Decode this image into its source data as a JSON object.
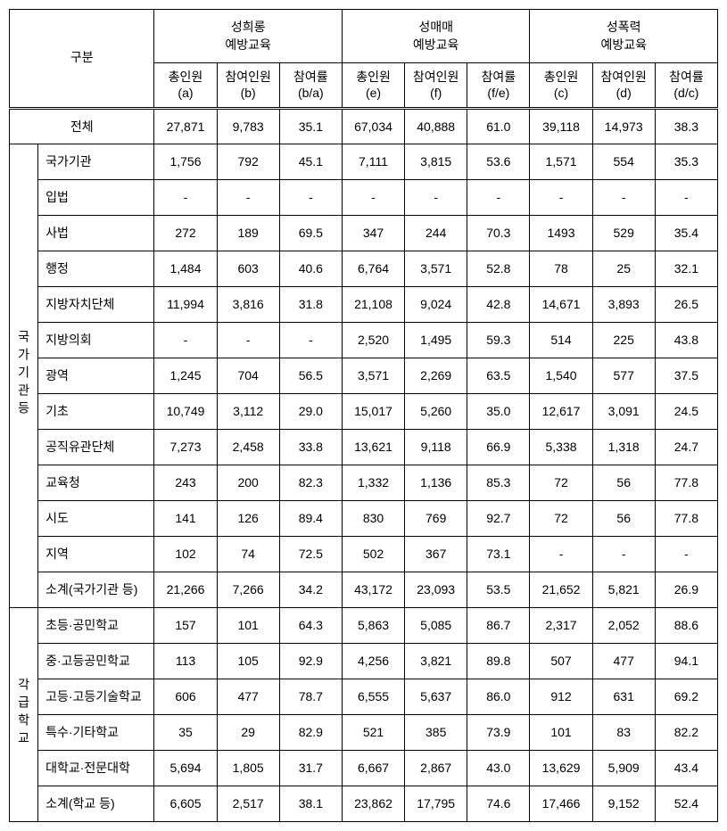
{
  "header": {
    "category": "구분",
    "groups": [
      {
        "title": "성희롱\n예방교육",
        "cols": [
          {
            "label": "총인원",
            "sub": "(a)"
          },
          {
            "label": "참여인원",
            "sub": "(b)"
          },
          {
            "label": "참여률",
            "sub": "(b/a)"
          }
        ]
      },
      {
        "title": "성매매\n예방교육",
        "cols": [
          {
            "label": "총인원",
            "sub": "(e)"
          },
          {
            "label": "참여인원",
            "sub": "(f)"
          },
          {
            "label": "참여률",
            "sub": "(f/e)"
          }
        ]
      },
      {
        "title": "성폭력\n예방교육",
        "cols": [
          {
            "label": "총인원",
            "sub": "(c)"
          },
          {
            "label": "참여인원",
            "sub": "(d)"
          },
          {
            "label": "참여률",
            "sub": "(d/c)"
          }
        ]
      }
    ]
  },
  "totalRow": {
    "label": "전체",
    "values": [
      "27,871",
      "9,783",
      "35.1",
      "67,034",
      "40,888",
      "61.0",
      "39,118",
      "14,973",
      "38.3"
    ]
  },
  "section1": {
    "label": "국가기관등",
    "rows": [
      {
        "label": "국가기관",
        "values": [
          "1,756",
          "792",
          "45.1",
          "7,111",
          "3,815",
          "53.6",
          "1,571",
          "554",
          "35.3"
        ]
      },
      {
        "label": "입법",
        "values": [
          "-",
          "-",
          "-",
          "-",
          "-",
          "-",
          "-",
          "-",
          "-"
        ]
      },
      {
        "label": "사법",
        "values": [
          "272",
          "189",
          "69.5",
          "347",
          "244",
          "70.3",
          "1493",
          "529",
          "35.4"
        ]
      },
      {
        "label": "행정",
        "values": [
          "1,484",
          "603",
          "40.6",
          "6,764",
          "3,571",
          "52.8",
          "78",
          "25",
          "32.1"
        ]
      },
      {
        "label": "지방자치단체",
        "values": [
          "11,994",
          "3,816",
          "31.8",
          "21,108",
          "9,024",
          "42.8",
          "14,671",
          "3,893",
          "26.5"
        ]
      },
      {
        "label": "지방의회",
        "values": [
          "-",
          "-",
          "-",
          "2,520",
          "1,495",
          "59.3",
          "514",
          "225",
          "43.8"
        ]
      },
      {
        "label": "광역",
        "values": [
          "1,245",
          "704",
          "56.5",
          "3,571",
          "2,269",
          "63.5",
          "1,540",
          "577",
          "37.5"
        ]
      },
      {
        "label": "기초",
        "values": [
          "10,749",
          "3,112",
          "29.0",
          "15,017",
          "5,260",
          "35.0",
          "12,617",
          "3,091",
          "24.5"
        ]
      },
      {
        "label": "공직유관단체",
        "values": [
          "7,273",
          "2,458",
          "33.8",
          "13,621",
          "9,118",
          "66.9",
          "5,338",
          "1,318",
          "24.7"
        ]
      },
      {
        "label": "교육청",
        "values": [
          "243",
          "200",
          "82.3",
          "1,332",
          "1,136",
          "85.3",
          "72",
          "56",
          "77.8"
        ]
      },
      {
        "label": "시도",
        "values": [
          "141",
          "126",
          "89.4",
          "830",
          "769",
          "92.7",
          "72",
          "56",
          "77.8"
        ]
      },
      {
        "label": "지역",
        "values": [
          "102",
          "74",
          "72.5",
          "502",
          "367",
          "73.1",
          "-",
          "-",
          "-"
        ]
      },
      {
        "label": "소계(국가기관 등)",
        "values": [
          "21,266",
          "7,266",
          "34.2",
          "43,172",
          "23,093",
          "53.5",
          "21,652",
          "5,821",
          "26.9"
        ]
      }
    ]
  },
  "section2": {
    "label": "각급학교",
    "rows": [
      {
        "label": "초등·공민학교",
        "values": [
          "157",
          "101",
          "64.3",
          "5,863",
          "5,085",
          "86.7",
          "2,317",
          "2,052",
          "88.6"
        ]
      },
      {
        "label": "중·고등공민학교",
        "values": [
          "113",
          "105",
          "92.9",
          "4,256",
          "3,821",
          "89.8",
          "507",
          "477",
          "94.1"
        ]
      },
      {
        "label": "고등·고등기술학교",
        "values": [
          "606",
          "477",
          "78.7",
          "6,555",
          "5,637",
          "86.0",
          "912",
          "631",
          "69.2"
        ]
      },
      {
        "label": "특수·기타학교",
        "values": [
          "35",
          "29",
          "82.9",
          "521",
          "385",
          "73.9",
          "101",
          "83",
          "82.2"
        ]
      },
      {
        "label": "대학교·전문대학",
        "values": [
          "5,694",
          "1,805",
          "31.7",
          "6,667",
          "2,867",
          "43.0",
          "13,629",
          "5,909",
          "43.4"
        ]
      },
      {
        "label": "소계(학교 등)",
        "values": [
          "6,605",
          "2,517",
          "38.1",
          "23,862",
          "17,795",
          "74.6",
          "17,466",
          "9,152",
          "52.4"
        ]
      }
    ]
  },
  "styles": {
    "border_color": "#000000",
    "background_color": "#ffffff",
    "text_color": "#000000",
    "font_size": 14
  }
}
